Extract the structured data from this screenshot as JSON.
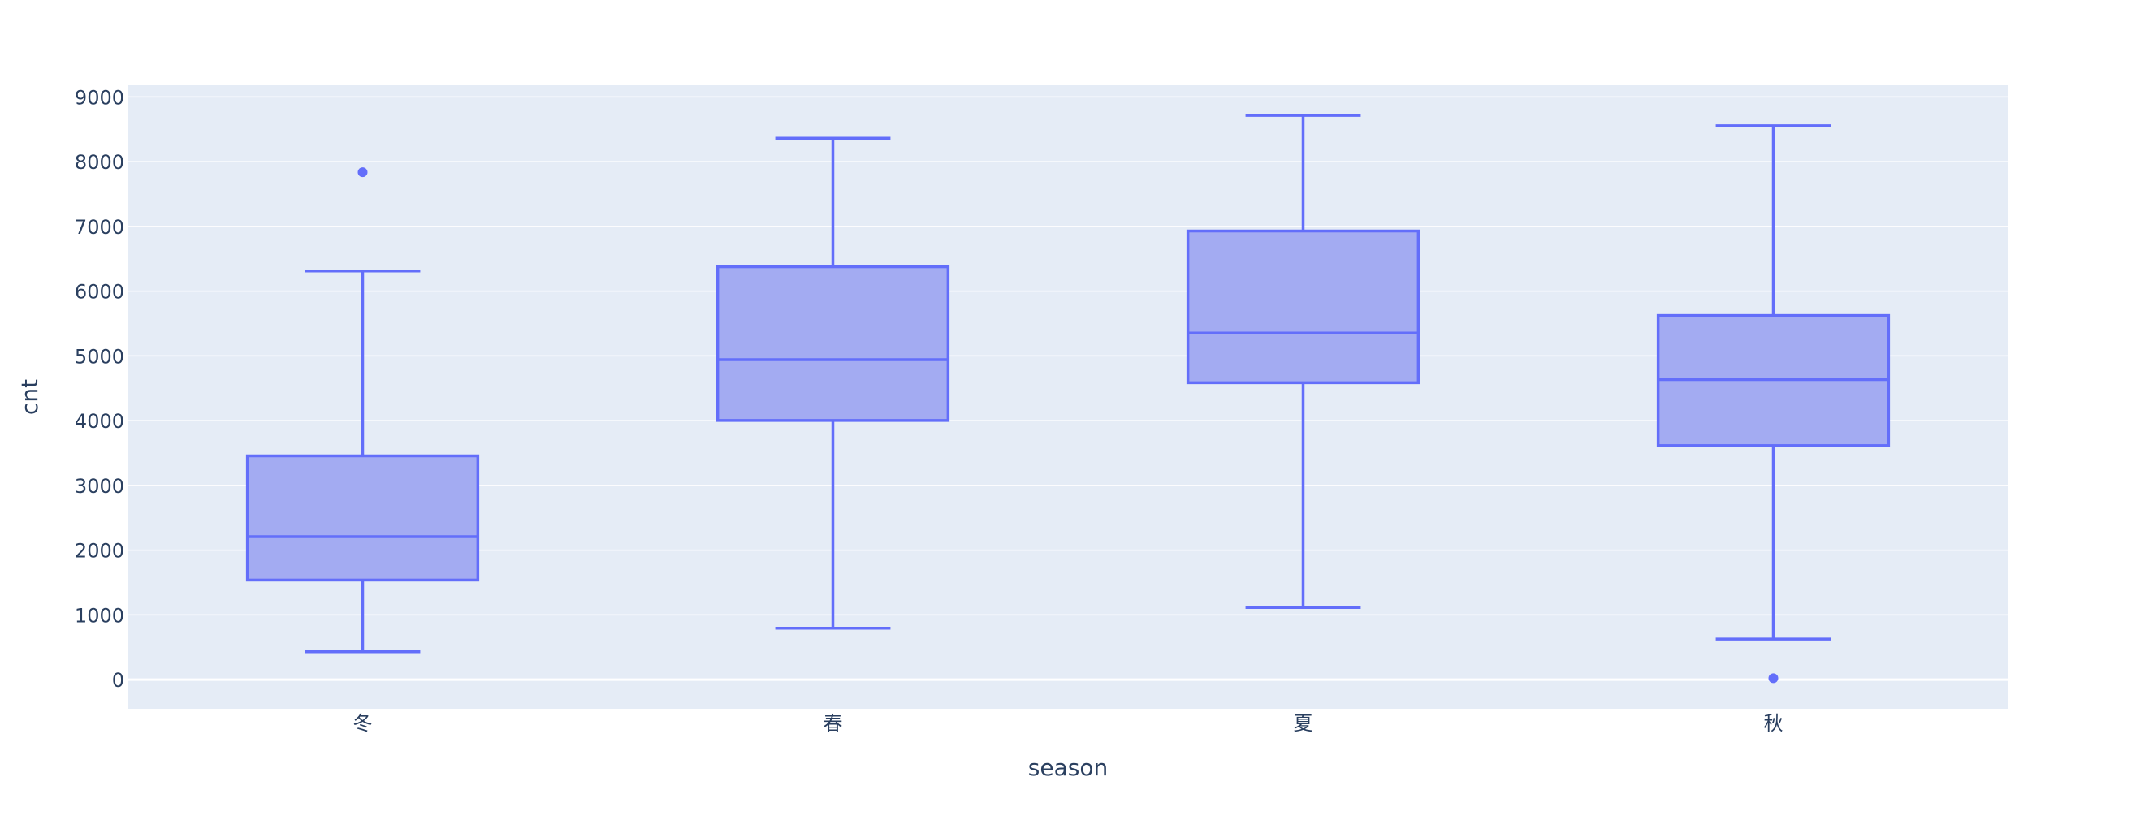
{
  "chart_data": {
    "type": "box",
    "title": "",
    "xlabel": "season",
    "ylabel": "cnt",
    "ylim": [
      -450,
      9180
    ],
    "yticks": [
      0,
      1000,
      2000,
      3000,
      4000,
      5000,
      6000,
      7000,
      8000,
      9000
    ],
    "ytick_labels": [
      "0",
      "1000",
      "2000",
      "3000",
      "4000",
      "5000",
      "6000",
      "7000",
      "8000",
      "9000"
    ],
    "categories": [
      "冬",
      "春",
      "夏",
      "秋"
    ],
    "boxes": [
      {
        "category": "冬",
        "lower_whisker": 431,
        "q1": 1538,
        "median": 2209,
        "q3": 3456,
        "upper_whisker": 6312,
        "outliers": [
          7836
        ]
      },
      {
        "category": "春",
        "lower_whisker": 795,
        "q1": 4003,
        "median": 4942,
        "q3": 6377,
        "upper_whisker": 8362,
        "outliers": []
      },
      {
        "category": "夏",
        "lower_whisker": 1115,
        "q1": 4586,
        "median": 5353,
        "q3": 6929,
        "upper_whisker": 8714,
        "outliers": []
      },
      {
        "category": "秋",
        "lower_whisker": 627,
        "q1": 3615,
        "median": 4634,
        "q3": 5624,
        "upper_whisker": 8555,
        "outliers": [
          22
        ]
      }
    ],
    "grid": true,
    "legend": "none",
    "colors": {
      "box_line": "#636efa",
      "box_fill": "#a3abf2",
      "plot_background": "#e5ecf6",
      "grid": "#ffffff",
      "text": "#2a3f5f"
    }
  }
}
